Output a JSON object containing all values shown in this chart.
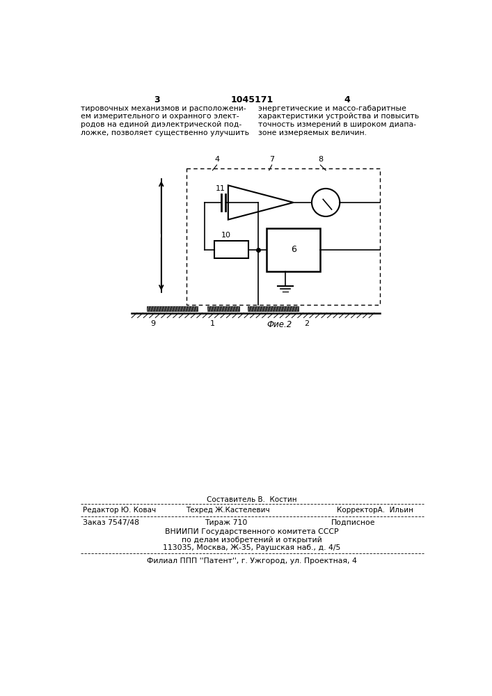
{
  "bg_color": "#ffffff",
  "page_number_left": "3",
  "page_number_center": "1045171",
  "page_number_right": "4",
  "text_left": "тировочных механизмов и расположени-\nем измерительного и охранного элект-\nродов на единой диэлектрической под-\nложке, позволяет существенно улучшить",
  "text_right": "энергетические и массо-габаритные\nхарактеристики устройства и повысить\nточность измерений в широком диапа-\nзоне измеряемых величин.",
  "fig_label": "Фие.2",
  "label_4": "4",
  "label_7": "7",
  "label_8": "8",
  "label_11": "11",
  "label_10": "10",
  "label_6": "6",
  "label_9": "9",
  "label_1": "1",
  "label_2": "2",
  "editor_line1": "Составитель В.  Костин",
  "editor_line2": "Редактор Ю. Ковач",
  "techred_line": "Техред Ж.Кастелевич",
  "corrector_line": "КорректорА.  Ильин",
  "order_line": "Заказ 7547/48",
  "tirazh_line": "Тираж 710",
  "podpisnoe_line": "Подписное",
  "vnipi_line1": "ВНИИПИ Государственного комитета СССР",
  "vnipi_line2": "по делам изобретений и открытий",
  "vnipi_line3": "113035, Москва, Ж-35, Раушская наб., д. 4/5",
  "filial_line": "Филиал ППП ''Патент'', г. Ужгород, ул. Проектная, 4"
}
